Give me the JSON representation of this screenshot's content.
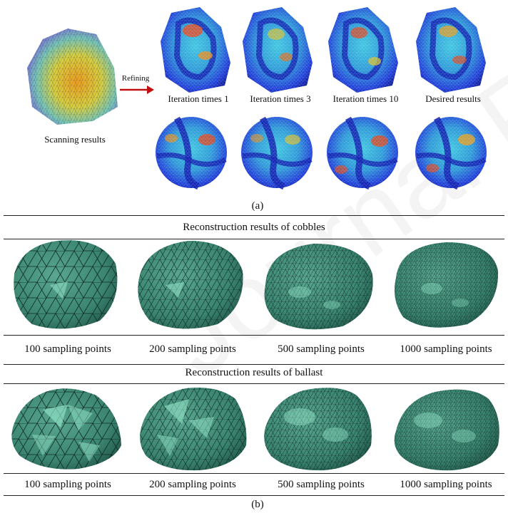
{
  "part_a": {
    "scan_label": "Scanning results",
    "refining_label": "Refining",
    "iteration_labels": [
      "Iteration times 1",
      "Iteration times 3",
      "Iteration times 10",
      "Desired results"
    ],
    "caption": "(a)"
  },
  "part_b": {
    "cobbles_title": "Reconstruction results of cobbles",
    "ballast_title": "Reconstruction results of ballast",
    "cobbles_labels": [
      "100 sampling points",
      "200 sampling points",
      "500 sampling points",
      "1000 sampling points"
    ],
    "ballast_labels": [
      "100 sampling points",
      "200 sampling points",
      "500 sampling points",
      "1000 sampling points"
    ],
    "caption": "(b)"
  },
  "watermark": "Journal Pre-proofs",
  "colors": {
    "mesh_fill": "#3e8a78",
    "mesh_highlight": "#8fe0c4",
    "mesh_edge": "#0c2a22",
    "heat_blue": "#1a2fd0",
    "heat_red": "#e04a20",
    "arrow": "#c01010"
  }
}
